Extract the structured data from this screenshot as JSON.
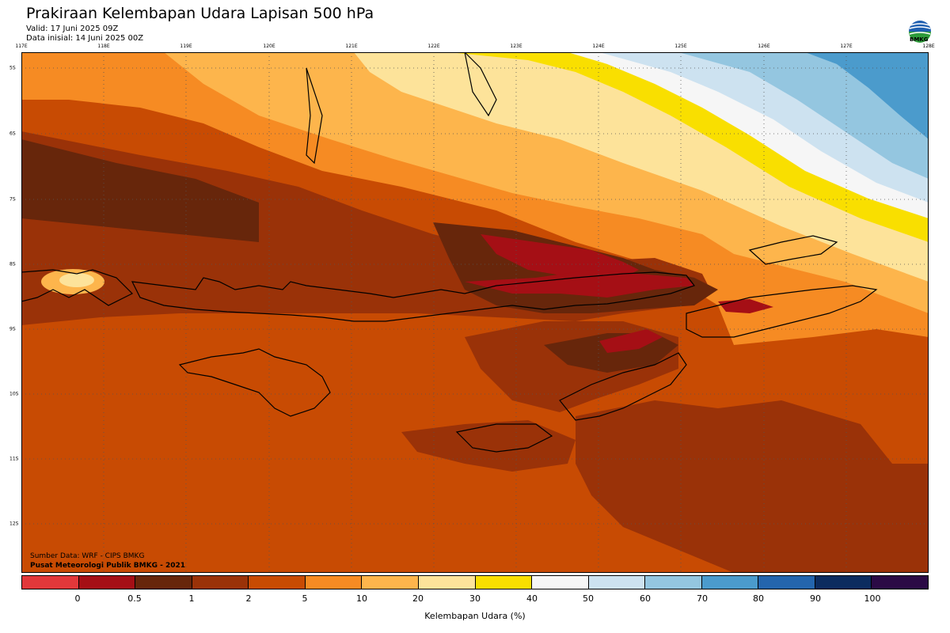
{
  "header": {
    "title": "Prakiraan Kelembapan Udara Lapisan 500 hPa",
    "valid": "Valid: 17 Juni 2025 09Z",
    "init": "Data inisial: 14 Juni 2025 00Z"
  },
  "logo": {
    "text": "BMKG",
    "icon": "bmkg-logo-icon"
  },
  "map": {
    "lon_labels": [
      "117E",
      "118E",
      "119E",
      "120E",
      "121E",
      "122E",
      "123E",
      "124E",
      "125E",
      "126E",
      "127E",
      "128E"
    ],
    "lat_labels": [
      "5S",
      "6S",
      "7S",
      "8S",
      "9S",
      "10S",
      "11S",
      "12S"
    ],
    "extent": {
      "lon": [
        117,
        128
      ],
      "lat": [
        -4.8,
        -12.8
      ]
    }
  },
  "credits": {
    "source": "Sumber Data: WRF - CIPS BMKG",
    "org": "Pusat Meteorologi Publik BMKG - 2021"
  },
  "colorbar": {
    "label": "Kelembapan Udara (%)",
    "ticks": [
      "0",
      "0.5",
      "1",
      "2",
      "5",
      "10",
      "20",
      "30",
      "40",
      "50",
      "60",
      "70",
      "80",
      "90",
      "100"
    ],
    "colors": [
      "#e2383a",
      "#a50f15",
      "#67260b",
      "#9a3208",
      "#c84b03",
      "#f68b23",
      "#fdb54c",
      "#fde39a",
      "#f9df00",
      "#f6f6f6",
      "#cde2f0",
      "#94c6e0",
      "#4b9bcc",
      "#2465ad",
      "#0c2c5f",
      "#2b0a45"
    ]
  }
}
